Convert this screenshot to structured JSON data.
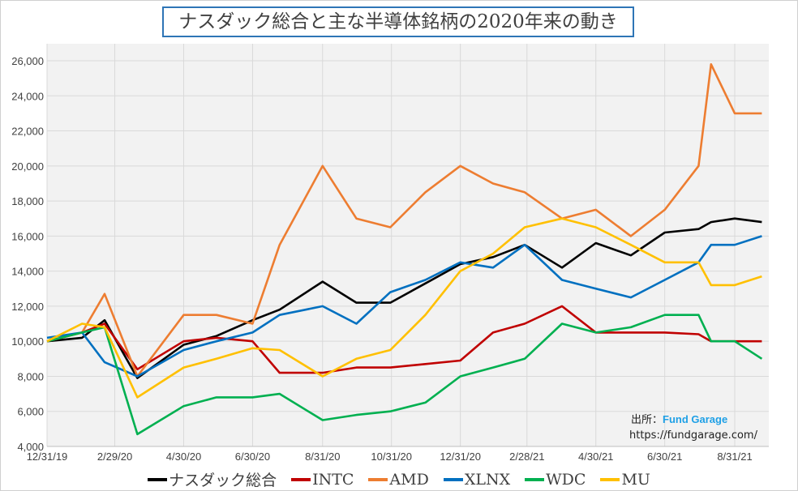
{
  "chart_data": {
    "type": "line",
    "title": "ナスダック総合と主な半導体銘柄の2020年来の動き",
    "xlabel": "",
    "ylabel": "",
    "ylim": [
      4000,
      26000
    ],
    "yticks": [
      4000,
      6000,
      8000,
      10000,
      12000,
      14000,
      16000,
      18000,
      20000,
      22000,
      24000,
      26000
    ],
    "ytick_labels": [
      "4,000",
      "6,000",
      "8,000",
      "10,000",
      "12,000",
      "14,000",
      "16,000",
      "18,000",
      "20,000",
      "22,000",
      "24,000",
      "26,000"
    ],
    "xticks": [
      "2019-12-31",
      "2020-02-29",
      "2020-04-30",
      "2020-06-30",
      "2020-08-31",
      "2020-10-31",
      "2020-12-31",
      "2021-02-28",
      "2021-04-30",
      "2021-06-30",
      "2021-08-31"
    ],
    "xtick_labels": [
      "12/31/19",
      "2/29/20",
      "4/30/20",
      "6/30/20",
      "8/31/20",
      "10/31/20",
      "12/31/20",
      "2/28/21",
      "4/30/21",
      "6/30/21",
      "8/31/21"
    ],
    "grid": true,
    "legend_position": "bottom",
    "x": [
      "2019-12-31",
      "2020-01-31",
      "2020-02-20",
      "2020-03-20",
      "2020-04-30",
      "2020-05-29",
      "2020-06-30",
      "2020-07-24",
      "2020-08-31",
      "2020-09-30",
      "2020-10-30",
      "2020-11-30",
      "2020-12-31",
      "2021-01-29",
      "2021-02-26",
      "2021-03-31",
      "2021-04-30",
      "2021-05-31",
      "2021-06-30",
      "2021-07-30",
      "2021-08-10",
      "2021-08-31",
      "2021-09-24"
    ],
    "series": [
      {
        "name": "ナスダック総合",
        "color": "#000000",
        "values": [
          10000,
          10200,
          11200,
          7900,
          9800,
          10300,
          11200,
          11800,
          13400,
          12200,
          12200,
          13300,
          14400,
          14800,
          15500,
          14200,
          15600,
          14900,
          16200,
          16400,
          16800,
          17000,
          16800
        ]
      },
      {
        "name": "INTC",
        "color": "#c00000",
        "values": [
          10000,
          10500,
          11000,
          8400,
          10000,
          10200,
          10000,
          8200,
          8200,
          8500,
          8500,
          8700,
          8900,
          10500,
          11000,
          12000,
          10500,
          10500,
          10500,
          10400,
          10000,
          10000,
          10000
        ]
      },
      {
        "name": "AMD",
        "color": "#ed7d31",
        "values": [
          10000,
          10500,
          12700,
          8000,
          11500,
          11500,
          11000,
          15500,
          20000,
          17000,
          16500,
          18500,
          20000,
          19000,
          18500,
          17000,
          17500,
          16000,
          17500,
          20000,
          25800,
          23000,
          23000
        ]
      },
      {
        "name": "XLNX",
        "color": "#0070c0",
        "values": [
          10200,
          10500,
          8800,
          8000,
          9500,
          10000,
          10500,
          11500,
          12000,
          11000,
          12800,
          13500,
          14500,
          14200,
          15500,
          13500,
          13000,
          12500,
          13500,
          14500,
          15500,
          15500,
          16000
        ]
      },
      {
        "name": "WDC",
        "color": "#00b050",
        "values": [
          10000,
          10500,
          10800,
          4700,
          6300,
          6800,
          6800,
          7000,
          5500,
          5800,
          6000,
          6500,
          8000,
          8500,
          9000,
          11000,
          10500,
          10800,
          11500,
          11500,
          10000,
          10000,
          9000
        ]
      },
      {
        "name": "MU",
        "color": "#ffc000",
        "values": [
          10000,
          11000,
          10800,
          6800,
          8500,
          9000,
          9600,
          9500,
          8000,
          9000,
          9500,
          11500,
          14000,
          15000,
          16500,
          17000,
          16500,
          15500,
          14500,
          14500,
          13200,
          13200,
          13700
        ]
      }
    ]
  },
  "source": {
    "label": "出所：",
    "name": "Fund Garage",
    "url": "https://fundgarage.com/"
  }
}
